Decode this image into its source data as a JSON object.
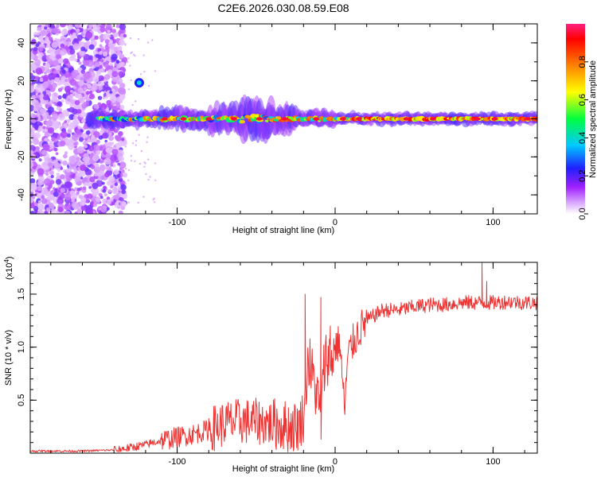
{
  "title": "C2E6.2026.030.08.59.E08",
  "chart_data": [
    {
      "type": "heatmap",
      "xlabel": "Height of straight line (km)",
      "ylabel": "Frequency (Hz)",
      "xlim": [
        -193,
        128
      ],
      "ylim": [
        -50,
        50
      ],
      "xticks": [
        -100,
        0,
        100
      ],
      "xtick_labels": [
        "-100",
        "0",
        "100"
      ],
      "yticks": [
        -40,
        -20,
        0,
        20,
        40
      ],
      "ytick_labels": [
        "-40",
        "-20",
        "0",
        "20",
        "40"
      ],
      "colorbar": {
        "label": "Normalized spectral amplitude",
        "range": [
          0,
          1
        ],
        "ticks": [
          0.0,
          0.2,
          0.4,
          0.6,
          0.8
        ],
        "tick_labels": [
          "0.0",
          "0.2",
          "0.4",
          "0.6",
          "0.8"
        ],
        "colormap": [
          "#ffffff",
          "#b040ff",
          "#2020ff",
          "#00c8ff",
          "#00ff40",
          "#ffff00",
          "#ff7000",
          "#ff0000",
          "#ff2080"
        ]
      },
      "features": {
        "noise_region_km": [
          -193,
          -133
        ],
        "narrow_band_center_hz": 0,
        "spot_center": [
          -124,
          19
        ]
      }
    },
    {
      "type": "line",
      "xlabel": "Height of straight line (km)",
      "ylabel": "SNR (10 * v/v)",
      "y_multiplier": "(x10",
      "y_multiplier_exp": "4",
      "y_multiplier_close": ")",
      "xlim": [
        -193,
        128
      ],
      "ylim": [
        0,
        1.8
      ],
      "xticks": [
        -100,
        0,
        100
      ],
      "xtick_labels": [
        "-100",
        "0",
        "100"
      ],
      "yticks": [
        0.5,
        1.0,
        1.5
      ],
      "ytick_labels": [
        "0.5",
        "1.0",
        "1.5"
      ],
      "series": [
        {
          "name": "SNR",
          "color": "#ee3333",
          "x": [
            -193,
            -180,
            -160,
            -140,
            -130,
            -120,
            -110,
            -100,
            -90,
            -80,
            -70,
            -60,
            -50,
            -40,
            -30,
            -24,
            -20,
            -17,
            -15,
            -12,
            -9,
            -7,
            -5,
            -3,
            0,
            3,
            6,
            8,
            10,
            15,
            20,
            25,
            30,
            40,
            50,
            60,
            70,
            80,
            90,
            100,
            110,
            120,
            128
          ],
          "values": [
            0.02,
            0.02,
            0.02,
            0.03,
            0.05,
            0.08,
            0.12,
            0.15,
            0.18,
            0.22,
            0.28,
            0.3,
            0.3,
            0.28,
            0.25,
            0.25,
            0.35,
            0.9,
            0.75,
            0.6,
            0.3,
            0.8,
            0.95,
            0.85,
            1.0,
            1.05,
            0.4,
            0.9,
            1.0,
            1.15,
            1.25,
            1.3,
            1.35,
            1.35,
            1.38,
            1.4,
            1.4,
            1.42,
            1.42,
            1.42,
            1.43,
            1.42,
            1.42
          ]
        }
      ]
    }
  ]
}
